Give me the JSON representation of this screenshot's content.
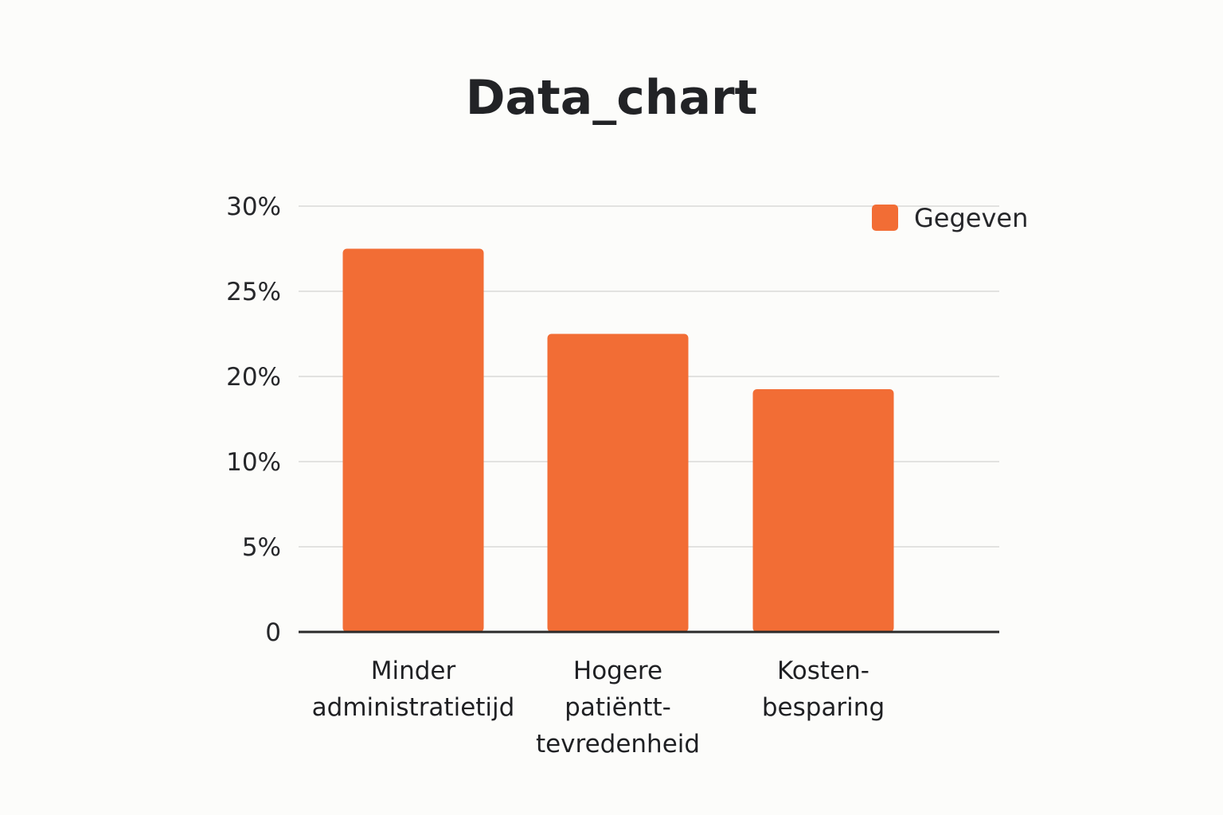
{
  "chart_data": {
    "type": "bar",
    "title": "Data_chart",
    "xlabel": "",
    "ylabel": "",
    "categories": [
      [
        "Minder",
        "administratietijd"
      ],
      [
        "Hogere",
        "patiëntt-",
        "tevredenheid"
      ],
      [
        "Kosten-",
        "besparing"
      ]
    ],
    "series": [
      {
        "name": "Gegeven",
        "values": [
          27.5,
          22.5,
          18.5
        ],
        "color": "#f26d35"
      }
    ],
    "yticks": [
      {
        "value": 0,
        "label": "0"
      },
      {
        "value": 5,
        "label": "5%"
      },
      {
        "value": 10,
        "label": "10%"
      },
      {
        "value": 20,
        "label": "20%"
      },
      {
        "value": 25,
        "label": "25%"
      },
      {
        "value": 30,
        "label": "30%"
      }
    ],
    "ylim": [
      0,
      30
    ],
    "grid": true,
    "legend_position": "top-right",
    "colors": {
      "bar": "#f26d35",
      "grid": "#e2e2e0",
      "axis": "#2a2a2a"
    }
  }
}
